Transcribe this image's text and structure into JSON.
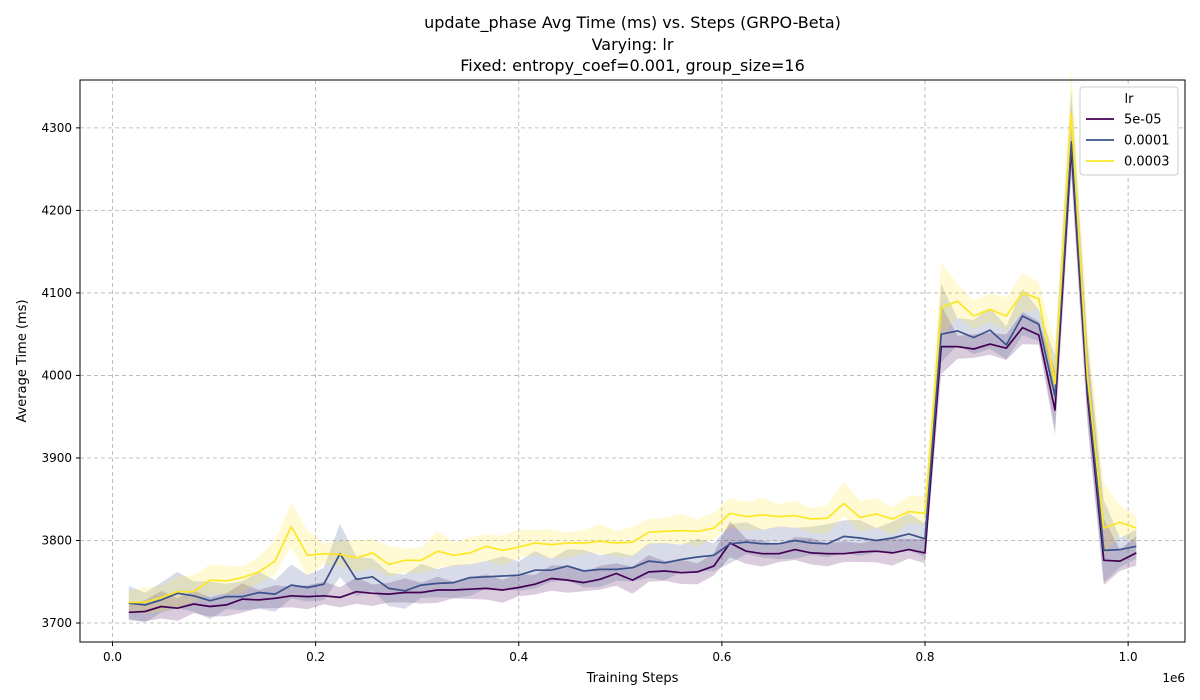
{
  "chart_data": {
    "type": "line",
    "title_lines": [
      "update_phase Avg Time (ms) vs. Steps (GRPO-Beta)",
      "Varying: lr",
      "Fixed: entropy_coef=0.001, group_size=16"
    ],
    "xlabel": "Training Steps",
    "ylabel": "Average Time (ms)",
    "x_offset_label": "1e6",
    "xlim": [
      -0.032,
      1.056
    ],
    "ylim": [
      3677,
      4358
    ],
    "x_ticks": [
      0.0,
      0.2,
      0.4,
      0.6,
      0.8,
      1.0
    ],
    "x_tick_labels": [
      "0.0",
      "0.2",
      "0.4",
      "0.6",
      "0.8",
      "1.0"
    ],
    "y_ticks": [
      3700,
      3800,
      3900,
      4000,
      4100,
      4200,
      4300
    ],
    "y_tick_labels": [
      "3700",
      "3800",
      "3900",
      "4000",
      "4100",
      "4200",
      "4300"
    ],
    "grid": true,
    "legend": {
      "title": "lr",
      "position": "top-right"
    },
    "x": [
      0.016,
      0.032,
      0.048,
      0.064,
      0.08,
      0.096,
      0.112,
      0.128,
      0.144,
      0.16,
      0.176,
      0.192,
      0.208,
      0.224,
      0.24,
      0.256,
      0.272,
      0.288,
      0.304,
      0.32,
      0.336,
      0.352,
      0.368,
      0.384,
      0.4,
      0.416,
      0.432,
      0.448,
      0.464,
      0.48,
      0.496,
      0.512,
      0.528,
      0.544,
      0.56,
      0.576,
      0.592,
      0.608,
      0.624,
      0.64,
      0.656,
      0.672,
      0.688,
      0.704,
      0.72,
      0.736,
      0.752,
      0.768,
      0.784,
      0.8,
      0.816,
      0.832,
      0.848,
      0.864,
      0.88,
      0.896,
      0.912,
      0.928,
      0.944,
      0.96,
      0.976,
      0.992,
      1.008
    ],
    "series": [
      {
        "name": "5e-05",
        "color": "#440154",
        "band_spread": 10,
        "values": [
          3713,
          3714,
          3720,
          3718,
          3723,
          3720,
          3722,
          3729,
          3728,
          3730,
          3733,
          3732,
          3733,
          3731,
          3738,
          3736,
          3735,
          3737,
          3737,
          3740,
          3740,
          3741,
          3742,
          3740,
          3743,
          3747,
          3754,
          3752,
          3749,
          3753,
          3760,
          3752,
          3762,
          3763,
          3761,
          3762,
          3769,
          3797,
          3787,
          3784,
          3784,
          3789,
          3785,
          3784,
          3784,
          3786,
          3787,
          3785,
          3789,
          3785,
          4035,
          4035,
          4032,
          4038,
          4033,
          4058,
          4049,
          3958,
          4275,
          3975,
          3776,
          3775,
          3785
        ]
      },
      {
        "name": "0.0001",
        "color": "#3b528b",
        "band_spread": 14,
        "values": [
          3724,
          3722,
          3728,
          3736,
          3733,
          3727,
          3732,
          3732,
          3737,
          3735,
          3746,
          3743,
          3747,
          3784,
          3753,
          3756,
          3742,
          3739,
          3746,
          3748,
          3749,
          3755,
          3756,
          3757,
          3758,
          3764,
          3764,
          3769,
          3763,
          3765,
          3765,
          3767,
          3775,
          3773,
          3777,
          3780,
          3782,
          3796,
          3798,
          3796,
          3796,
          3800,
          3797,
          3796,
          3805,
          3803,
          3800,
          3803,
          3808,
          3802,
          4050,
          4054,
          4046,
          4055,
          4037,
          4072,
          4062,
          3975,
          4283,
          3985,
          3788,
          3789,
          3793
        ]
      },
      {
        "name": "0.0003",
        "color": "#fde725",
        "band_spread": 12,
        "values": [
          3725,
          3725,
          3731,
          3738,
          3738,
          3752,
          3751,
          3755,
          3762,
          3775,
          3817,
          3782,
          3784,
          3783,
          3779,
          3785,
          3771,
          3776,
          3776,
          3787,
          3782,
          3785,
          3793,
          3788,
          3792,
          3797,
          3795,
          3797,
          3797,
          3799,
          3797,
          3798,
          3810,
          3811,
          3812,
          3811,
          3815,
          3833,
          3829,
          3831,
          3829,
          3830,
          3826,
          3827,
          3845,
          3828,
          3832,
          3826,
          3835,
          3833,
          4082,
          4090,
          4072,
          4080,
          4072,
          4100,
          4093,
          3990,
          4317,
          3998,
          3815,
          3822,
          3815
        ]
      }
    ]
  }
}
